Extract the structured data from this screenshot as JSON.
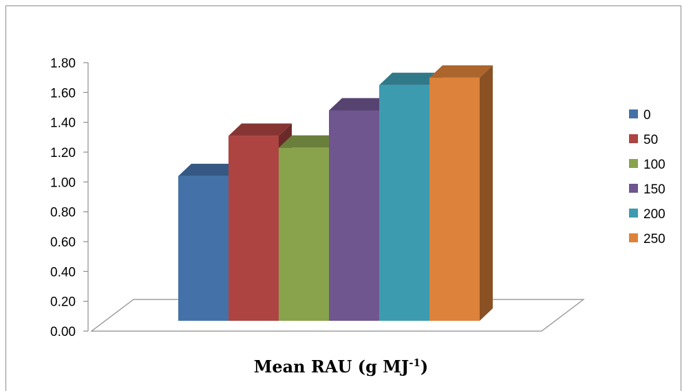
{
  "chart_data": {
    "type": "bar",
    "title": "",
    "xlabel": "Mean RAU (g MJ",
    "xlabel_sup": "-1",
    "xlabel_close": ")",
    "ylabel": "",
    "ylim": [
      0,
      1.8
    ],
    "yticks": [
      "0.00",
      "0.20",
      "0.40",
      "0.60",
      "0.80",
      "1.00",
      "1.20",
      "1.40",
      "1.60",
      "1.80"
    ],
    "categories": [
      "0",
      "50",
      "100",
      "150",
      "200",
      "250"
    ],
    "values": [
      0.97,
      1.24,
      1.16,
      1.41,
      1.58,
      1.63
    ],
    "colors": [
      "#4472a8",
      "#ad4442",
      "#88a34b",
      "#6f568f",
      "#3d9bb0",
      "#dd823a"
    ],
    "legend_position": "right",
    "grid": false,
    "style": "3d-column"
  }
}
